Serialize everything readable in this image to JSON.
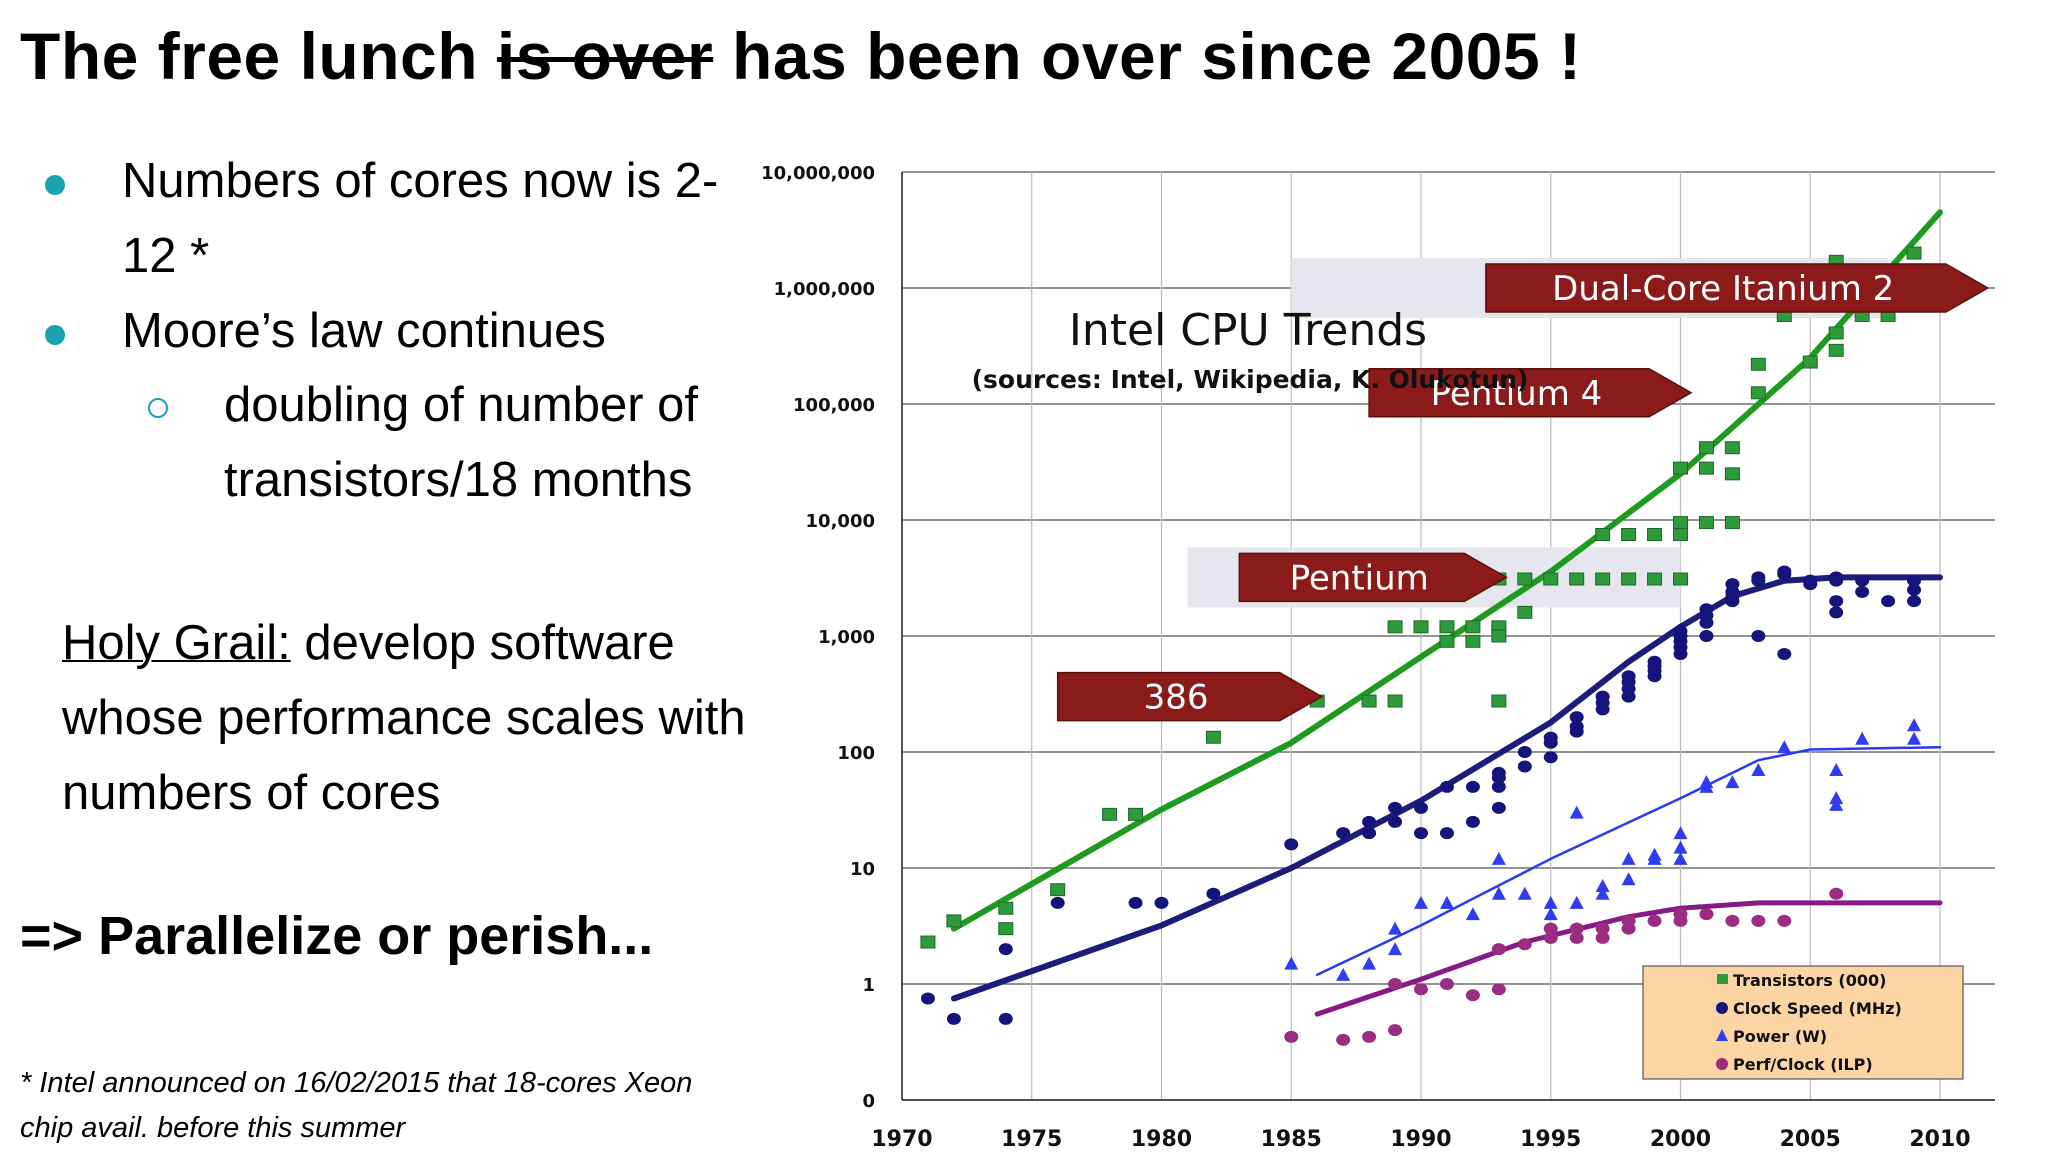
{
  "slide": {
    "title_part1": "The free lunch ",
    "title_strike": "is over",
    "title_part2": " has been over since 2005 !",
    "bullets": {
      "b1_line1": "Numbers of cores now is 2-",
      "b1_line2": "12 *",
      "b2": "Moore’s law continues",
      "sub1_line1": "doubling of number of",
      "sub1_line2": "transistors/18 months"
    },
    "holy_grail_label": "Holy Grail:",
    "holy_grail_line1": " develop software",
    "holy_grail_line2": "whose performance scales with",
    "holy_grail_line3": "numbers of cores",
    "parallelize": "=> Parallelize or perish...",
    "footnote_line1": "*  Intel announced on 16/02/2015  that 18-cores Xeon",
    "footnote_line2": "chip avail. before this summer",
    "colors": {
      "bullet": "#1aa3b1"
    }
  },
  "chart_data": {
    "type": "scatter",
    "title": "Intel CPU Trends",
    "subtitle": "(sources: Intel, Wikipedia, K. Olukotun)",
    "xlabel": "",
    "ylabel": "",
    "scale": "log",
    "xlim": [
      1970,
      2012
    ],
    "ylim": [
      0.1,
      10000000
    ],
    "grid": true,
    "x_ticks": [
      1970,
      1975,
      1980,
      1985,
      1990,
      1995,
      2000,
      2005,
      2010
    ],
    "x_tick_labels": [
      "1970",
      "1975",
      "1980",
      "1985",
      "1990",
      "1995",
      "2000",
      "2005",
      "2010"
    ],
    "y_ticks": [
      0.1,
      1,
      10,
      100,
      1000,
      10000,
      100000,
      1000000,
      10000000
    ],
    "y_tick_labels": [
      "0",
      "1",
      "10",
      "100",
      "1,000",
      "10,000",
      "100,000",
      "1,000,000",
      "10,000,000"
    ],
    "legend_position": "bottom-right",
    "colors": {
      "legend_bg": "#fcd5a5",
      "callout": "#8b1a1a",
      "callout_band": "#e6e6ee"
    },
    "series": [
      {
        "name": "Transistors (000)",
        "marker": "square",
        "color": "#2e9a3c",
        "trend_color": "#1e9a1e",
        "points": [
          [
            1971,
            2.3
          ],
          [
            1972,
            3.5
          ],
          [
            1974,
            4.5
          ],
          [
            1974,
            3
          ],
          [
            1976,
            6.5
          ],
          [
            1978,
            29
          ],
          [
            1979,
            29
          ],
          [
            1982,
            134
          ],
          [
            1985,
            275
          ],
          [
            1986,
            275
          ],
          [
            1988,
            275
          ],
          [
            1989,
            275
          ],
          [
            1989,
            1200
          ],
          [
            1990,
            1200
          ],
          [
            1991,
            1200
          ],
          [
            1991,
            900
          ],
          [
            1992,
            900
          ],
          [
            1992,
            1200
          ],
          [
            1993,
            1200
          ],
          [
            1993,
            1000
          ],
          [
            1993,
            275
          ],
          [
            1993,
            3100
          ],
          [
            1994,
            3100
          ],
          [
            1994,
            1600
          ],
          [
            1995,
            3100
          ],
          [
            1996,
            3100
          ],
          [
            1997,
            3100
          ],
          [
            1997,
            7500
          ],
          [
            1998,
            3100
          ],
          [
            1998,
            7500
          ],
          [
            1999,
            3100
          ],
          [
            1999,
            7500
          ],
          [
            2000,
            3100
          ],
          [
            2000,
            9500
          ],
          [
            2000,
            28000
          ],
          [
            2000,
            7500
          ],
          [
            2001,
            9500
          ],
          [
            2001,
            28000
          ],
          [
            2001,
            42000
          ],
          [
            2002,
            42000
          ],
          [
            2002,
            9500
          ],
          [
            2002,
            25000
          ],
          [
            2003,
            220000
          ],
          [
            2003,
            125000
          ],
          [
            2004,
            580000
          ],
          [
            2005,
            230000
          ],
          [
            2006,
            410000
          ],
          [
            2006,
            290000
          ],
          [
            2006,
            1700000
          ],
          [
            2007,
            580000
          ],
          [
            2008,
            580000
          ],
          [
            2009,
            2000000
          ],
          [
            2009,
            730000
          ]
        ],
        "trend": [
          [
            1972,
            3
          ],
          [
            1980,
            32
          ],
          [
            1985,
            120
          ],
          [
            1990,
            660
          ],
          [
            1995,
            3600
          ],
          [
            2000,
            25000
          ],
          [
            2005,
            250000
          ],
          [
            2010,
            4500000
          ]
        ]
      },
      {
        "name": "Clock Speed (MHz)",
        "marker": "circle",
        "color": "#14147a",
        "trend_color": "#1c1c7a",
        "points": [
          [
            1971,
            0.75
          ],
          [
            1972,
            0.5
          ],
          [
            1974,
            0.5
          ],
          [
            1974,
            2
          ],
          [
            1976,
            5
          ],
          [
            1979,
            5
          ],
          [
            1980,
            5
          ],
          [
            1982,
            6
          ],
          [
            1985,
            16
          ],
          [
            1987,
            20
          ],
          [
            1988,
            20
          ],
          [
            1988,
            25
          ],
          [
            1989,
            25
          ],
          [
            1989,
            33
          ],
          [
            1990,
            20
          ],
          [
            1990,
            33
          ],
          [
            1991,
            50
          ],
          [
            1991,
            20
          ],
          [
            1992,
            25
          ],
          [
            1992,
            50
          ],
          [
            1993,
            33
          ],
          [
            1993,
            50
          ],
          [
            1993,
            60
          ],
          [
            1993,
            66
          ],
          [
            1994,
            75
          ],
          [
            1994,
            100
          ],
          [
            1995,
            90
          ],
          [
            1995,
            120
          ],
          [
            1995,
            133
          ],
          [
            1996,
            150
          ],
          [
            1996,
            166
          ],
          [
            1996,
            200
          ],
          [
            1997,
            233
          ],
          [
            1997,
            266
          ],
          [
            1997,
            300
          ],
          [
            1998,
            300
          ],
          [
            1998,
            350
          ],
          [
            1998,
            400
          ],
          [
            1998,
            450
          ],
          [
            1999,
            500
          ],
          [
            1999,
            550
          ],
          [
            1999,
            600
          ],
          [
            1999,
            450
          ],
          [
            2000,
            700
          ],
          [
            2000,
            800
          ],
          [
            2000,
            900
          ],
          [
            2000,
            1000
          ],
          [
            2000,
            1100
          ],
          [
            2001,
            1300
          ],
          [
            2001,
            1500
          ],
          [
            2001,
            1700
          ],
          [
            2001,
            1000
          ],
          [
            2002,
            2000
          ],
          [
            2002,
            2200
          ],
          [
            2002,
            2400
          ],
          [
            2002,
            2800
          ],
          [
            2003,
            3000
          ],
          [
            2003,
            3200
          ],
          [
            2004,
            3400
          ],
          [
            2004,
            3600
          ],
          [
            2003,
            1000
          ],
          [
            2004,
            700
          ],
          [
            2005,
            2800
          ],
          [
            2005,
            3000
          ],
          [
            2006,
            3000
          ],
          [
            2006,
            3200
          ],
          [
            2006,
            2000
          ],
          [
            2006,
            1600
          ],
          [
            2007,
            2400
          ],
          [
            2007,
            3000
          ],
          [
            2008,
            2000
          ],
          [
            2009,
            2500
          ],
          [
            2009,
            2000
          ],
          [
            2009,
            3000
          ]
        ],
        "trend": [
          [
            1972,
            0.75
          ],
          [
            1980,
            3.2
          ],
          [
            1985,
            10
          ],
          [
            1990,
            38
          ],
          [
            1995,
            180
          ],
          [
            1998,
            600
          ],
          [
            2000,
            1200
          ],
          [
            2002,
            2200
          ],
          [
            2004,
            3000
          ],
          [
            2006,
            3200
          ],
          [
            2010,
            3200
          ]
        ]
      },
      {
        "name": "Power (W)",
        "marker": "triangle",
        "color": "#2f3df2",
        "trend_color": "#2a3bef",
        "points": [
          [
            1985,
            1.5
          ],
          [
            1987,
            1.2
          ],
          [
            1988,
            1.5
          ],
          [
            1989,
            2
          ],
          [
            1989,
            3
          ],
          [
            1990,
            5
          ],
          [
            1991,
            5
          ],
          [
            1992,
            4
          ],
          [
            1993,
            12
          ],
          [
            1993,
            6
          ],
          [
            1994,
            6
          ],
          [
            1995,
            4
          ],
          [
            1995,
            5
          ],
          [
            1996,
            5
          ],
          [
            1996,
            30
          ],
          [
            1997,
            6
          ],
          [
            1997,
            7
          ],
          [
            1998,
            8
          ],
          [
            1998,
            12
          ],
          [
            1999,
            12
          ],
          [
            1999,
            13
          ],
          [
            2000,
            12
          ],
          [
            2000,
            20
          ],
          [
            2000,
            15
          ],
          [
            2001,
            50
          ],
          [
            2001,
            55
          ],
          [
            2002,
            55
          ],
          [
            2003,
            70
          ],
          [
            2004,
            110
          ],
          [
            2006,
            70
          ],
          [
            2006,
            40
          ],
          [
            2006,
            35
          ],
          [
            2007,
            130
          ],
          [
            2009,
            130
          ],
          [
            2009,
            170
          ]
        ],
        "trend": [
          [
            1986,
            1.2
          ],
          [
            1990,
            3.2
          ],
          [
            1995,
            12
          ],
          [
            2000,
            40
          ],
          [
            2003,
            85
          ],
          [
            2005,
            105
          ],
          [
            2010,
            110
          ]
        ]
      },
      {
        "name": "Perf/Clock (ILP)",
        "marker": "circle",
        "color": "#9a2c82",
        "trend_color": "#861a86",
        "points": [
          [
            1985,
            0.35
          ],
          [
            1987,
            0.33
          ],
          [
            1988,
            0.35
          ],
          [
            1989,
            0.4
          ],
          [
            1989,
            1
          ],
          [
            1990,
            0.9
          ],
          [
            1991,
            1
          ],
          [
            1992,
            0.8
          ],
          [
            1993,
            2
          ],
          [
            1993,
            0.9
          ],
          [
            1994,
            2.2
          ],
          [
            1995,
            2.5
          ],
          [
            1995,
            3
          ],
          [
            1996,
            2.5
          ],
          [
            1996,
            3
          ],
          [
            1997,
            2.5
          ],
          [
            1997,
            3
          ],
          [
            1998,
            3
          ],
          [
            1998,
            3.5
          ],
          [
            1999,
            3.5
          ],
          [
            2000,
            4
          ],
          [
            2000,
            3.5
          ],
          [
            2001,
            4
          ],
          [
            2002,
            3.5
          ],
          [
            2003,
            3.5
          ],
          [
            2004,
            3.5
          ],
          [
            2006,
            6
          ]
        ],
        "trend": [
          [
            1986,
            0.55
          ],
          [
            1990,
            1.1
          ],
          [
            1994,
            2.3
          ],
          [
            1998,
            3.8
          ],
          [
            2000,
            4.5
          ],
          [
            2003,
            5
          ],
          [
            2010,
            5
          ]
        ]
      }
    ],
    "annotations": [
      {
        "label": "Dual-Core Itanium 2",
        "at": [
          1992.5,
          1000000
        ],
        "band_x": [
          1985,
          2008
        ]
      },
      {
        "label": "Pentium 4",
        "at": [
          1988,
          125000
        ]
      },
      {
        "label": "Pentium",
        "at": [
          1983,
          3200
        ],
        "band_x": [
          1981,
          2000
        ]
      },
      {
        "label": "386",
        "at": [
          1976,
          300
        ]
      }
    ]
  }
}
